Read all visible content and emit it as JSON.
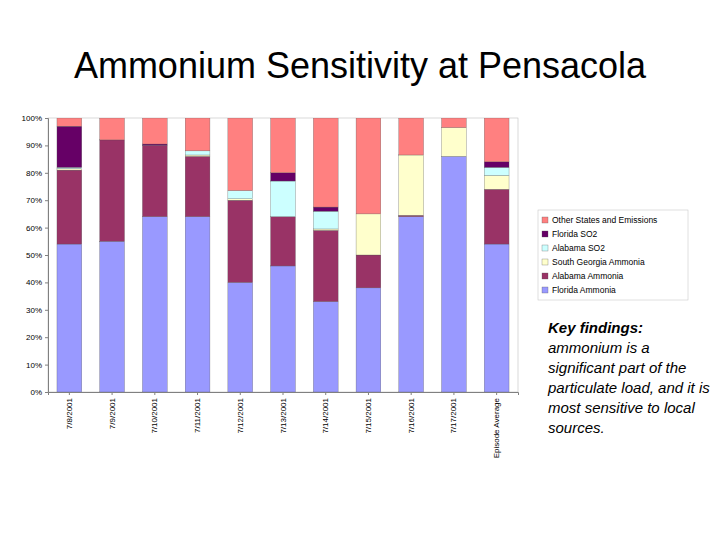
{
  "chart_data": {
    "type": "bar",
    "title": "Ammonium Sensitivity at Pensacola",
    "stacked": true,
    "grid": false,
    "legend": "right",
    "categories": [
      "7/8/2001",
      "7/9/2001",
      "7/10/2001",
      "7/11/2001",
      "7/12/2001",
      "7/13/2001",
      "7/14/2001",
      "7/15/2001",
      "7/16/2001",
      "7/17/2001",
      "Episode Average"
    ],
    "ylim": [
      0,
      100
    ],
    "yticks": [
      {
        "value": 0,
        "label": "0%"
      },
      {
        "value": 10,
        "label": "10%"
      },
      {
        "value": 20,
        "label": "20%"
      },
      {
        "value": 30,
        "label": "30%"
      },
      {
        "value": 40,
        "label": "40%"
      },
      {
        "value": 50,
        "label": "50%"
      },
      {
        "value": 60,
        "label": "60%"
      },
      {
        "value": 70,
        "label": "70%"
      },
      {
        "value": 80,
        "label": "80%"
      },
      {
        "value": 90,
        "label": "90%"
      },
      {
        "value": 100,
        "label": "100%"
      }
    ],
    "series": [
      {
        "name": "Florida Ammonia",
        "color": "#9999ff",
        "values": [
          54,
          55,
          64,
          64,
          40,
          46,
          33,
          38,
          64,
          86,
          54
        ]
      },
      {
        "name": "Alabama Ammonia",
        "color": "#993366",
        "values": [
          27,
          37,
          26,
          22,
          30,
          18,
          26,
          12,
          0.5,
          0,
          20
        ]
      },
      {
        "name": "South Georgia Ammonia",
        "color": "#ffffcc",
        "values": [
          0.5,
          0,
          0,
          0.5,
          0.5,
          0,
          0.5,
          15,
          22,
          10.5,
          5
        ]
      },
      {
        "name": "Alabama SO2",
        "color": "#ccffff",
        "values": [
          0.5,
          0,
          0,
          1.5,
          3,
          13,
          6.5,
          0,
          0,
          0,
          3
        ]
      },
      {
        "name": "Florida SO2",
        "color": "#660066",
        "values": [
          15,
          0,
          0.5,
          0,
          0,
          3,
          1.5,
          0,
          0,
          0,
          2
        ]
      },
      {
        "name": "Other States and Emissions",
        "color": "#ff8080",
        "values": [
          3,
          8,
          9.5,
          12,
          26.5,
          20,
          32.5,
          35,
          13.5,
          3.5,
          16
        ]
      }
    ],
    "annotations": [
      "Key findings:",
      "ammonium is a significant part of the particulate load, and it is most sensitive to local sources."
    ]
  }
}
